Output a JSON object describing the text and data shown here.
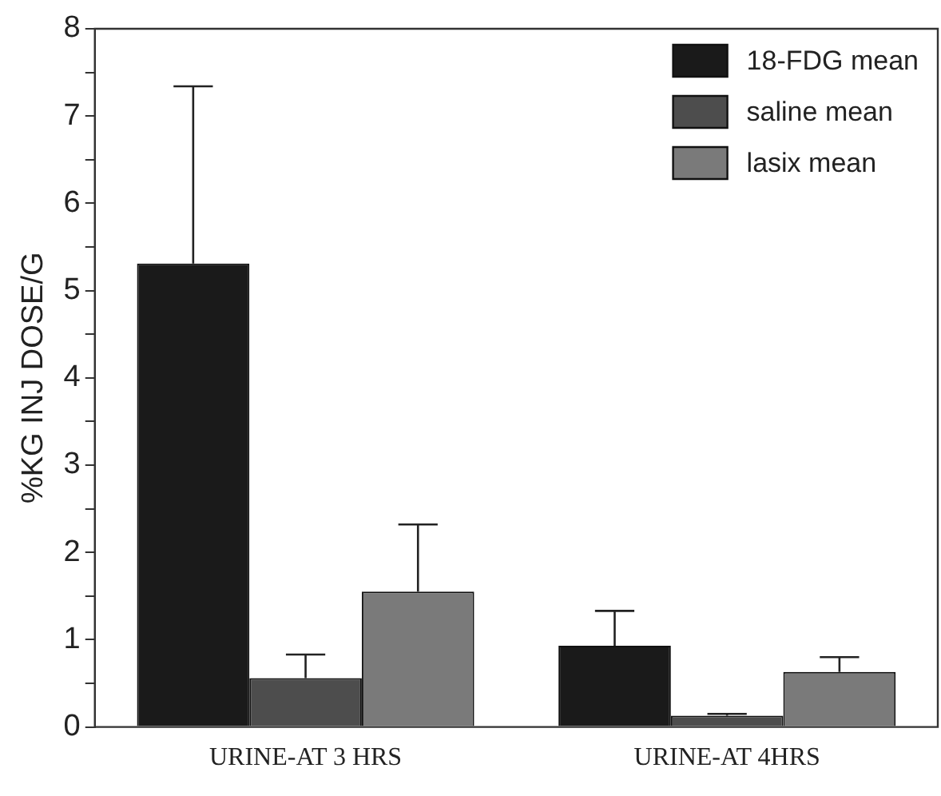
{
  "chart_data": {
    "type": "bar",
    "ylabel": "%KG INJ DOSE/G",
    "categories": [
      "URINE-AT 3 HRS",
      "URINE-AT 4HRS"
    ],
    "series": [
      {
        "name": "18-FDG mean",
        "color": "#1a1a1a",
        "values": [
          5.31,
          0.93
        ],
        "errors": [
          [
            5.31,
            7.34
          ],
          [
            0.93,
            1.33
          ]
        ]
      },
      {
        "name": "saline mean",
        "color": "#4d4d4d",
        "values": [
          0.56,
          0.13
        ],
        "errors": [
          [
            0.56,
            0.83
          ],
          [
            0.13,
            0.15
          ]
        ]
      },
      {
        "name": "lasix mean",
        "color": "#7a7a7a",
        "values": [
          1.55,
          0.63
        ],
        "errors": [
          [
            1.55,
            2.32
          ],
          [
            0.63,
            0.8
          ]
        ]
      }
    ],
    "ylim": [
      0,
      8
    ],
    "yticks": [
      0,
      {
        "value": 0.5,
        "label": null
      },
      1,
      {
        "value": 1.5,
        "label": null
      },
      2,
      {
        "value": 2.5,
        "label": null
      },
      3,
      {
        "value": 3.5,
        "label": null
      },
      4,
      {
        "value": 4.5,
        "label": null
      },
      5,
      {
        "value": 5.5,
        "label": null
      },
      6,
      {
        "value": 6.5,
        "label": null
      },
      7,
      {
        "value": 7.5,
        "label": null
      },
      8
    ],
    "grid": false,
    "legend": "top right"
  }
}
